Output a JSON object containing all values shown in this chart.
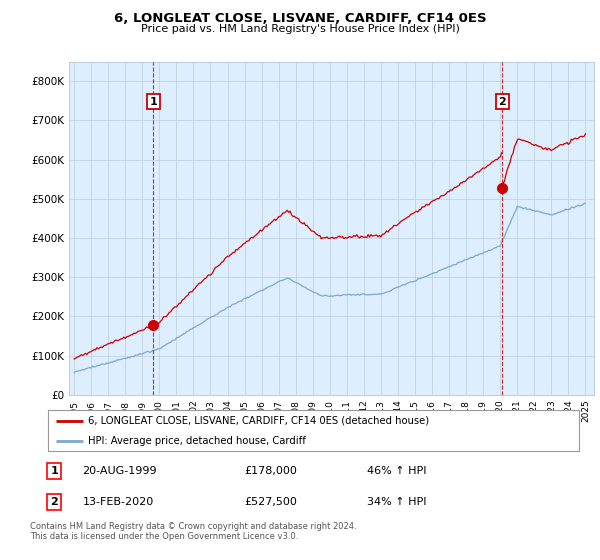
{
  "title": "6, LONGLEAT CLOSE, LISVANE, CARDIFF, CF14 0ES",
  "subtitle": "Price paid vs. HM Land Registry's House Price Index (HPI)",
  "sale1_date": "20-AUG-1999",
  "sale1_price": 178000,
  "sale1_hpi": "46% ↑ HPI",
  "sale1_label": "1",
  "sale1_year": 1999.64,
  "sale2_date": "13-FEB-2020",
  "sale2_price": 527500,
  "sale2_hpi": "34% ↑ HPI",
  "sale2_label": "2",
  "sale2_year": 2020.12,
  "legend_line1": "6, LONGLEAT CLOSE, LISVANE, CARDIFF, CF14 0ES (detached house)",
  "legend_line2": "HPI: Average price, detached house, Cardiff",
  "footer": "Contains HM Land Registry data © Crown copyright and database right 2024.\nThis data is licensed under the Open Government Licence v3.0.",
  "red_color": "#cc0000",
  "blue_color": "#7ba7d0",
  "chart_bg": "#ddeeff",
  "grid_color": "#bbccdd",
  "background_color": "#ffffff",
  "ylim": [
    0,
    850000
  ],
  "yticks": [
    0,
    100000,
    200000,
    300000,
    400000,
    500000,
    600000,
    700000,
    800000
  ],
  "ytick_labels": [
    "£0",
    "£100K",
    "£200K",
    "£300K",
    "£400K",
    "£500K",
    "£600K",
    "£700K",
    "£800K"
  ],
  "xlim_start": 1994.7,
  "xlim_end": 2025.5,
  "xticks": [
    1995,
    1996,
    1997,
    1998,
    1999,
    2000,
    2001,
    2002,
    2003,
    2004,
    2005,
    2006,
    2007,
    2008,
    2009,
    2010,
    2011,
    2012,
    2013,
    2014,
    2015,
    2016,
    2017,
    2018,
    2019,
    2020,
    2021,
    2022,
    2023,
    2024,
    2025
  ]
}
